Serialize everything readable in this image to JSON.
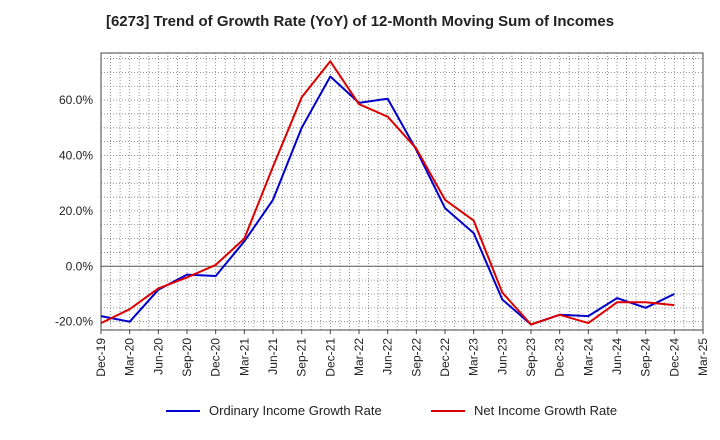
{
  "chart_data": {
    "type": "line",
    "title": "[6273]  Trend of Growth Rate (YoY) of 12-Month Moving Sum of Incomes",
    "xlabel": "",
    "ylabel": "",
    "ylim": [
      -23,
      77
    ],
    "yticks": [
      -20,
      0,
      20,
      40,
      60
    ],
    "ytick_labels": [
      "-20.0%",
      "0.0%",
      "20.0%",
      "40.0%",
      "60.0%"
    ],
    "x_tick_labels": [
      "Dec-19",
      "Mar-20",
      "Jun-20",
      "Sep-20",
      "Dec-20",
      "Mar-21",
      "Jun-21",
      "Sep-21",
      "Dec-21",
      "Mar-22",
      "Jun-22",
      "Sep-22",
      "Dec-22",
      "Mar-23",
      "Jun-23",
      "Sep-23",
      "Dec-23",
      "Mar-24",
      "Jun-24",
      "Sep-24",
      "Dec-24",
      "Mar-25"
    ],
    "grid": true,
    "legend_position": "bottom",
    "series": [
      {
        "name": "Ordinary Income Growth Rate",
        "color": "#0000cc",
        "values": [
          -18,
          -20,
          -8.5,
          -3,
          -3.5,
          9,
          24,
          50,
          68.5,
          59,
          60.5,
          42,
          21,
          12,
          -12,
          -21,
          -17.5,
          -18,
          -11.5,
          -15,
          -10
        ]
      },
      {
        "name": "Net Income Growth Rate",
        "color": "#dd0000",
        "values": [
          -20.5,
          -15.5,
          -8,
          -4,
          0.5,
          10,
          36,
          61,
          74,
          58.5,
          54,
          42.5,
          24,
          16.5,
          -9.5,
          -21,
          -17.5,
          -20.5,
          -13,
          -13,
          -14
        ]
      }
    ]
  }
}
